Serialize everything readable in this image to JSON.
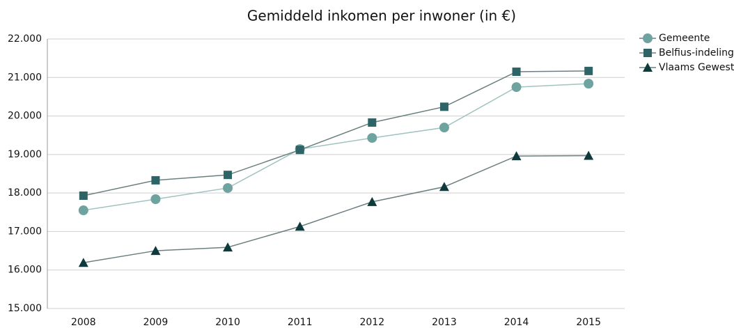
{
  "chart_data": {
    "type": "line",
    "title": "Gemiddeld inkomen per inwoner (in €)",
    "categories": [
      "2008",
      "2009",
      "2010",
      "2011",
      "2012",
      "2013",
      "2014",
      "2015"
    ],
    "series": [
      {
        "name": "Gemeente",
        "color": "#6fa3a0",
        "marker": "circle",
        "values": [
          17550,
          17840,
          18130,
          19140,
          19430,
          19700,
          20750,
          20840
        ]
      },
      {
        "name": "Belfius-indeling",
        "color": "#2e6466",
        "marker": "square",
        "values": [
          17930,
          18330,
          18470,
          19120,
          19830,
          20240,
          21150,
          21170
        ]
      },
      {
        "name": "Vlaams Gewest",
        "color": "#0e3a3c",
        "marker": "triangle",
        "values": [
          16190,
          16500,
          16590,
          17130,
          17770,
          18160,
          18960,
          18970
        ]
      }
    ],
    "ylim": [
      15000,
      22000
    ],
    "yticks": [
      {
        "value": 15000,
        "label": "15.000"
      },
      {
        "value": 16000,
        "label": "16.000"
      },
      {
        "value": 17000,
        "label": "17.000"
      },
      {
        "value": 18000,
        "label": "18.000"
      },
      {
        "value": 19000,
        "label": "19.000"
      },
      {
        "value": 20000,
        "label": "20.000"
      },
      {
        "value": 21000,
        "label": "21.000"
      },
      {
        "value": 22000,
        "label": "22.000"
      }
    ],
    "grid": true,
    "legend": "right"
  }
}
